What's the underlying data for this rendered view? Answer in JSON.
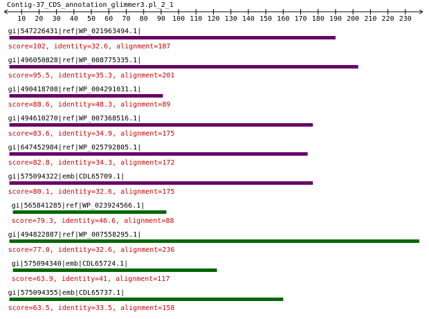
{
  "chart_data": {
    "type": "alignment",
    "title": "Contig-37_CDS_annotation_glimmer3.pl_2_1",
    "xlim": [
      0,
      240
    ],
    "xticks": [
      10,
      20,
      30,
      40,
      50,
      60,
      70,
      80,
      90,
      100,
      110,
      120,
      130,
      140,
      150,
      160,
      170,
      180,
      190,
      200,
      210,
      220,
      230
    ],
    "hits": [
      {
        "name": "gi|547226431|ref|WP_021963494.1|",
        "summary": "score=102, identity=32.6, alignment=187",
        "start": 3,
        "end": 190,
        "color": "#660066"
      },
      {
        "name": "gi|496050828|ref|WP_008775335.1|",
        "summary": "score=95.5, identity=35.3, alignment=201",
        "start": 3,
        "end": 203,
        "color": "#660066"
      },
      {
        "name": "gi|490418708|ref|WP_004291031.1|",
        "summary": "score=88.6, identity=48.3, alignment=89",
        "start": 3,
        "end": 91,
        "color": "#660066"
      },
      {
        "name": "gi|494610270|ref|WP_007368516.1|",
        "summary": "score=83.6, identity=34.9, alignment=175",
        "start": 3,
        "end": 177,
        "color": "#660066"
      },
      {
        "name": "gi|647452984|ref|WP_025792805.1|",
        "summary": "score=82.8, identity=34.3, alignment=172",
        "start": 3,
        "end": 174,
        "color": "#660066"
      },
      {
        "name": "gi|575094322|emb|CDL65709.1|",
        "summary": "score=80.1, identity=32.6, alignment=175",
        "start": 3,
        "end": 177,
        "color": "#660066"
      },
      {
        "name": "gi|565841285|ref|WP_023924566.1|",
        "summary": "score=79.3, identity=46.6, alignment=88",
        "start": 5,
        "end": 93,
        "color": "#006600"
      },
      {
        "name": "gi|494822887|ref|WP_007558295.1|",
        "summary": "score=77.0, identity=32.6, alignment=236",
        "start": 3,
        "end": 238,
        "color": "#006600"
      },
      {
        "name": "gi|575094340|emb|CDL65724.1|",
        "summary": "score=63.9, identity=41, alignment=117",
        "start": 5,
        "end": 122,
        "color": "#006600"
      },
      {
        "name": "gi|575094355|emb|CDL65737.1|",
        "summary": "score=63.5, identity=33.5, alignment=158",
        "start": 3,
        "end": 160,
        "color": "#006600"
      }
    ]
  }
}
